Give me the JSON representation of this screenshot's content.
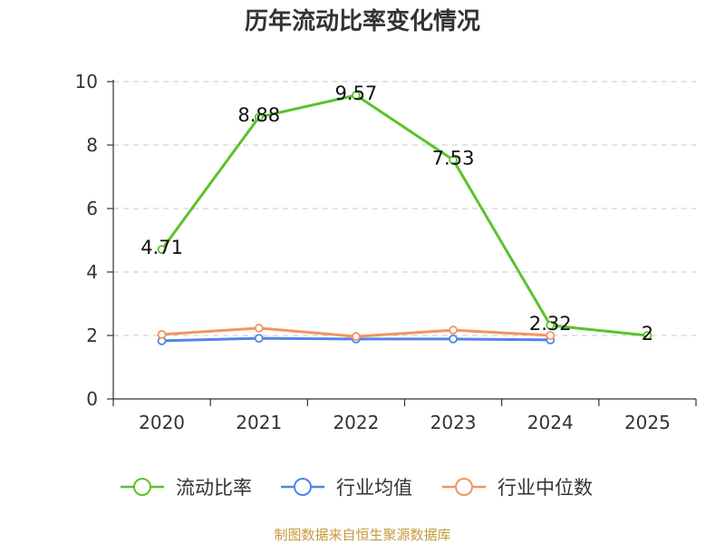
{
  "source_note": "制图数据来自恒生聚源数据库",
  "chart_data": {
    "type": "line",
    "title": "历年流动比率变化情况",
    "categories": [
      "2020",
      "2021",
      "2022",
      "2023",
      "2024",
      "2025"
    ],
    "ylim": [
      0,
      10
    ],
    "yticks": [
      0,
      2,
      4,
      6,
      8,
      10
    ],
    "grid": true,
    "legend": "bottom",
    "series": [
      {
        "name": "流动比率",
        "color": "#5bc22c",
        "show_labels": true,
        "values": [
          4.71,
          8.88,
          9.57,
          7.53,
          2.32,
          2
        ]
      },
      {
        "name": "行业均值",
        "color": "#5085e8",
        "show_labels": false,
        "values": [
          1.83,
          1.91,
          1.89,
          1.89,
          1.86,
          null
        ]
      },
      {
        "name": "行业中位数",
        "color": "#f59362",
        "show_labels": false,
        "values": [
          2.03,
          2.23,
          1.97,
          2.17,
          2.0,
          null
        ]
      }
    ]
  }
}
